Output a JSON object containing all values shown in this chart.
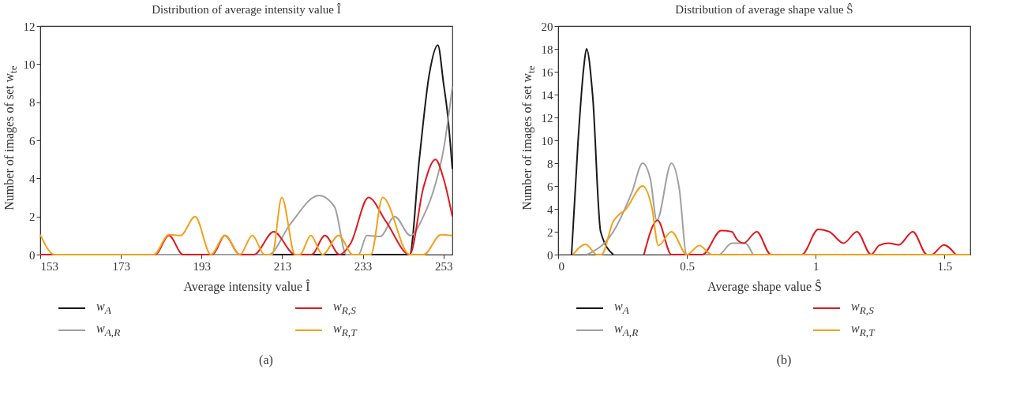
{
  "chart_data": [
    {
      "type": "line",
      "title": "Distribution of average intensity value Î",
      "xlabel": "Average intensity value Î",
      "ylabel": "Number of images of set w$_{te}$",
      "xlim": [
        153,
        255.2
      ],
      "xticks": [
        153,
        173,
        193,
        213,
        233,
        253
      ],
      "ylim": [
        0,
        12
      ],
      "yticks": [
        0,
        2,
        4,
        6,
        8,
        10,
        12
      ],
      "legend": "bottom",
      "line_style": "solid",
      "annotations": [
        "(a)"
      ],
      "series": [
        {
          "name": "w$_{A}$",
          "color": "#1a1a1a",
          "x": [
            153,
            244.6,
            247,
            249.5,
            251.6,
            253,
            254,
            255.2
          ],
          "values": [
            0,
            0,
            5,
            9.5,
            11,
            9,
            7.4,
            4.5
          ]
        },
        {
          "name": "w$_{A,R}$",
          "color": "#a0a0a0",
          "x": [
            153,
            209.6,
            215,
            222.1,
            226,
            228.9,
            231.9,
            234,
            237.3,
            240.9,
            244.8,
            248,
            251,
            253,
            255.2
          ],
          "values": [
            0,
            0,
            1.6,
            3.1,
            2.5,
            0,
            0,
            1,
            0.95,
            2,
            1,
            2,
            3.7,
            5.5,
            8.8
          ]
        },
        {
          "name": "w$_{R,S}$",
          "color": "#e0191f",
          "x": [
            153,
            181.5,
            184.9,
            188.4,
            195.7,
            198.8,
            202.5,
            206,
            210.9,
            216.2,
            220.3,
            223.6,
            227.2,
            230,
            234.4,
            238.7,
            244.6,
            248,
            251,
            253,
            255.2
          ],
          "values": [
            0,
            0,
            1,
            0,
            0,
            1,
            0,
            0,
            1.2,
            0,
            0,
            1,
            0,
            0.6,
            3,
            1.75,
            0,
            3.5,
            5,
            4,
            2
          ]
        },
        {
          "name": "w$_{R,T}$",
          "color": "#f5a01a",
          "x": [
            153,
            156.5,
            181.2,
            184.9,
            187.8,
            191.4,
            195.3,
            198.8,
            202.5,
            205.6,
            208.6,
            210.5,
            212.9,
            216.2,
            217.4,
            220.1,
            223,
            227,
            230.5,
            235,
            237.9,
            244.6,
            248.1,
            252.4,
            255.2
          ],
          "values": [
            1.05,
            0,
            0,
            1.05,
            1,
            2,
            0,
            1,
            0,
            1,
            0,
            0,
            3,
            0,
            0,
            1,
            0,
            1,
            0,
            0,
            3,
            0,
            0,
            1.05,
            1
          ]
        }
      ]
    },
    {
      "type": "line",
      "title": "Distribution of average shape value Ŝ",
      "xlabel": "Average shape value Ŝ",
      "ylabel": "Number of images of set w$_{te}$",
      "xlim": [
        0,
        1.6
      ],
      "xticks": [
        0,
        0.5,
        1,
        1.5
      ],
      "ylim": [
        0,
        20
      ],
      "yticks": [
        0,
        2,
        4,
        6,
        8,
        10,
        12,
        14,
        16,
        18,
        20
      ],
      "legend": "bottom",
      "line_style": "solid",
      "annotations": [
        "(b)"
      ],
      "series": [
        {
          "name": "w$_{A}$",
          "color": "#1a1a1a",
          "x": [
            0.052,
            0.077,
            0.1,
            0.11,
            0.134,
            0.165,
            0.214
          ],
          "values": [
            0,
            9.8,
            16.5,
            18,
            13.9,
            2,
            0
          ]
        },
        {
          "name": "w$_{A,R}$",
          "color": "#a0a0a0",
          "x": [
            0.113,
            0.214,
            0.287,
            0.328,
            0.358,
            0.383,
            0.44,
            0.47,
            0.499,
            0.624,
            0.674,
            0.725,
            0.756
          ],
          "values": [
            0,
            2,
            5.5,
            8,
            6.6,
            3,
            8,
            5.8,
            0,
            0,
            1,
            1,
            0
          ]
        },
        {
          "name": "w$_{R,S}$",
          "color": "#e0191f",
          "x": [
            0.333,
            0.386,
            0.44,
            0.56,
            0.633,
            0.674,
            0.695,
            0.72,
            0.771,
            0.826,
            0.946,
            1.01,
            1.053,
            1.108,
            1.16,
            1.215,
            1.246,
            1.282,
            1.322,
            1.377,
            1.432,
            1.45,
            1.497,
            1.543
          ],
          "values": [
            0,
            3,
            0,
            0,
            2.1,
            2,
            1.3,
            1,
            2,
            0,
            0,
            2.2,
            2,
            1,
            2,
            0,
            0.8,
            1,
            0.85,
            2,
            0,
            0,
            0.85,
            0
          ]
        },
        {
          "name": "w$_{R,T}$",
          "color": "#f5a01a",
          "x": [
            0.058,
            0.107,
            0.15,
            0.168,
            0.214,
            0.236,
            0.26,
            0.328,
            0.364,
            0.389,
            0.44,
            0.5,
            0.548,
            0.597,
            1.6
          ],
          "values": [
            0,
            0.9,
            0,
            0,
            2.9,
            3.5,
            3.9,
            6,
            4.1,
            0.8,
            2,
            0,
            0.8,
            0,
            0
          ]
        }
      ]
    }
  ]
}
